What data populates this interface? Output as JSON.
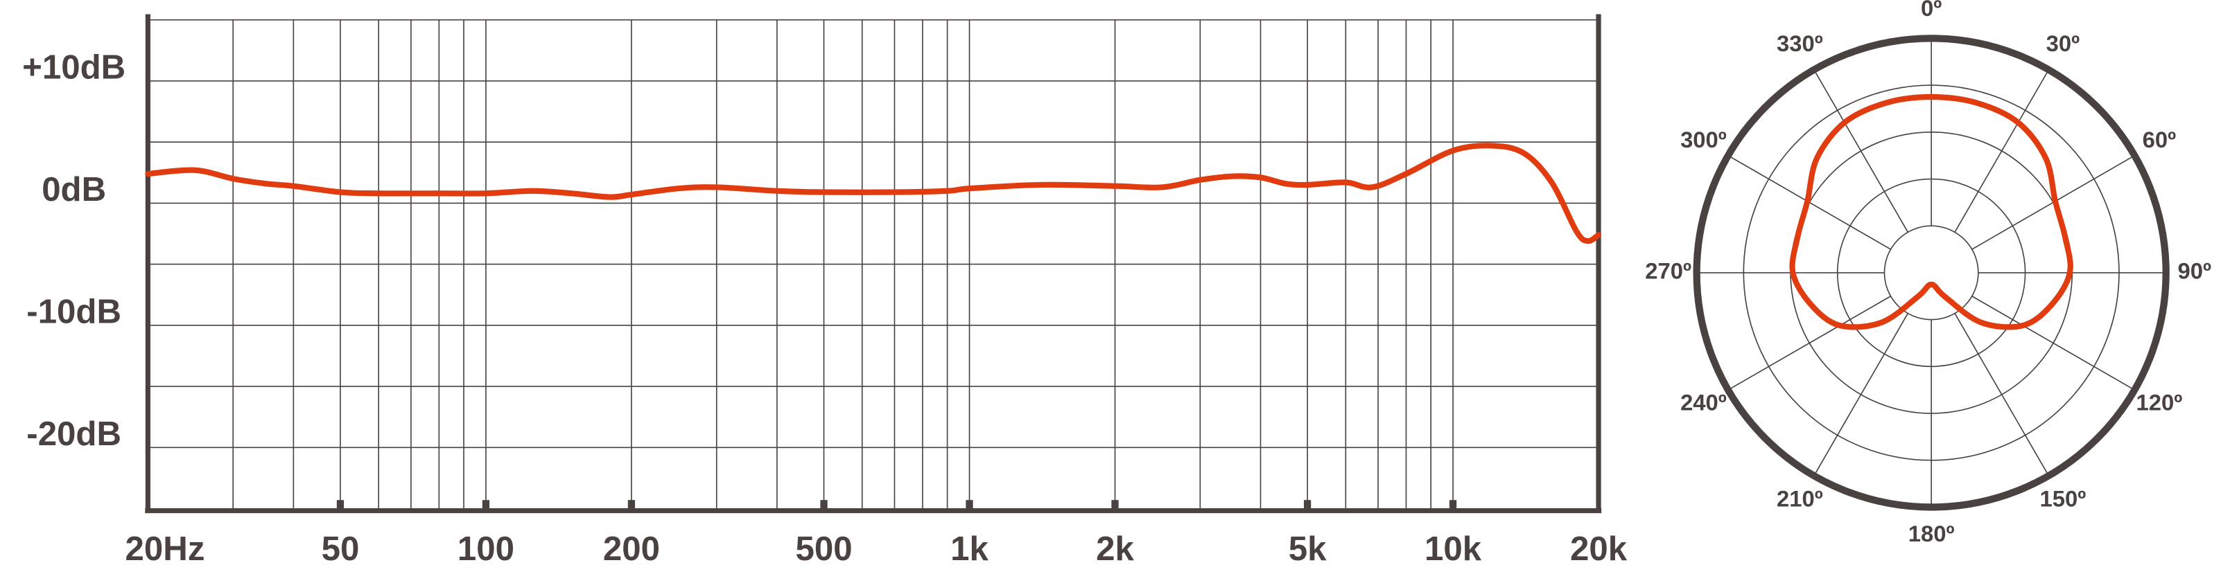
{
  "chart_data": [
    {
      "type": "line",
      "x": [
        20,
        25,
        30,
        35,
        40,
        50,
        60,
        80,
        100,
        125,
        150,
        180,
        200,
        250,
        300,
        400,
        500,
        700,
        900,
        1000,
        1400,
        2000,
        2500,
        3000,
        3500,
        4000,
        4500,
        5000,
        6000,
        6800,
        8000,
        10000,
        12000,
        14000,
        16000,
        18000,
        19000,
        20000
      ],
      "series": [
        {
          "color": "#e03c10",
          "values": [
            2.4,
            2.7,
            2.0,
            1.6,
            1.4,
            0.9,
            0.8,
            0.8,
            0.8,
            1.0,
            0.8,
            0.5,
            0.7,
            1.2,
            1.3,
            1.0,
            0.9,
            0.9,
            1.0,
            1.2,
            1.5,
            1.4,
            1.3,
            1.9,
            2.2,
            2.1,
            1.6,
            1.5,
            1.7,
            1.3,
            2.4,
            4.3,
            4.7,
            4.1,
            1.7,
            -2.3,
            -3.1,
            -2.6
          ]
        }
      ],
      "xscale": "log",
      "xlim": [
        20,
        20000
      ],
      "xticks": [
        {
          "value": 20,
          "label": "20Hz"
        },
        50,
        100,
        200,
        500,
        {
          "value": 1000,
          "label": "1k"
        },
        {
          "value": 2000,
          "label": "2k"
        },
        {
          "value": 5000,
          "label": "5k"
        },
        {
          "value": 10000,
          "label": "10k"
        },
        {
          "value": 20000,
          "label": "20k"
        }
      ],
      "xminor": [
        30,
        40,
        60,
        70,
        80,
        90,
        300,
        400,
        600,
        700,
        800,
        900,
        3000,
        4000,
        6000,
        7000,
        8000,
        9000
      ],
      "ylim": [
        -25,
        15
      ],
      "yticks": [
        {
          "value": 10,
          "label": "+10dB"
        },
        {
          "value": 0,
          "label": "0dB"
        },
        {
          "value": -10,
          "label": "-10dB"
        },
        {
          "value": -20,
          "label": "-20dB"
        }
      ],
      "yminor": [
        -15,
        -5,
        5,
        15
      ],
      "grid": true
    },
    {
      "type": "polar",
      "theta": [
        0,
        15,
        30,
        45,
        60,
        75,
        90,
        105,
        120,
        135,
        150,
        165,
        180,
        195,
        210,
        225,
        240,
        255,
        270,
        285,
        300,
        315,
        330,
        345
      ],
      "values": [
        75,
        75,
        74,
        69,
        61,
        59,
        59,
        53,
        45,
        30,
        12,
        6,
        5,
        6,
        12,
        30,
        45,
        53,
        59,
        59,
        61,
        69,
        74,
        75
      ],
      "color": "#e03c10",
      "rlim": [
        0,
        100
      ],
      "rgrid": [
        20,
        40,
        60,
        80,
        100
      ],
      "thetaticks": [
        {
          "value": 0,
          "label": "0º"
        },
        {
          "value": 30,
          "label": "30º"
        },
        {
          "value": 60,
          "label": "60º"
        },
        {
          "value": 90,
          "label": "90º"
        },
        {
          "value": 120,
          "label": "120º"
        },
        {
          "value": 150,
          "label": "150º"
        },
        {
          "value": 180,
          "label": "180º"
        },
        {
          "value": 210,
          "label": "210º"
        },
        {
          "value": 240,
          "label": "240º"
        },
        {
          "value": 270,
          "label": "270º"
        },
        {
          "value": 300,
          "label": "300º"
        },
        {
          "value": 330,
          "label": "330º"
        }
      ]
    }
  ]
}
